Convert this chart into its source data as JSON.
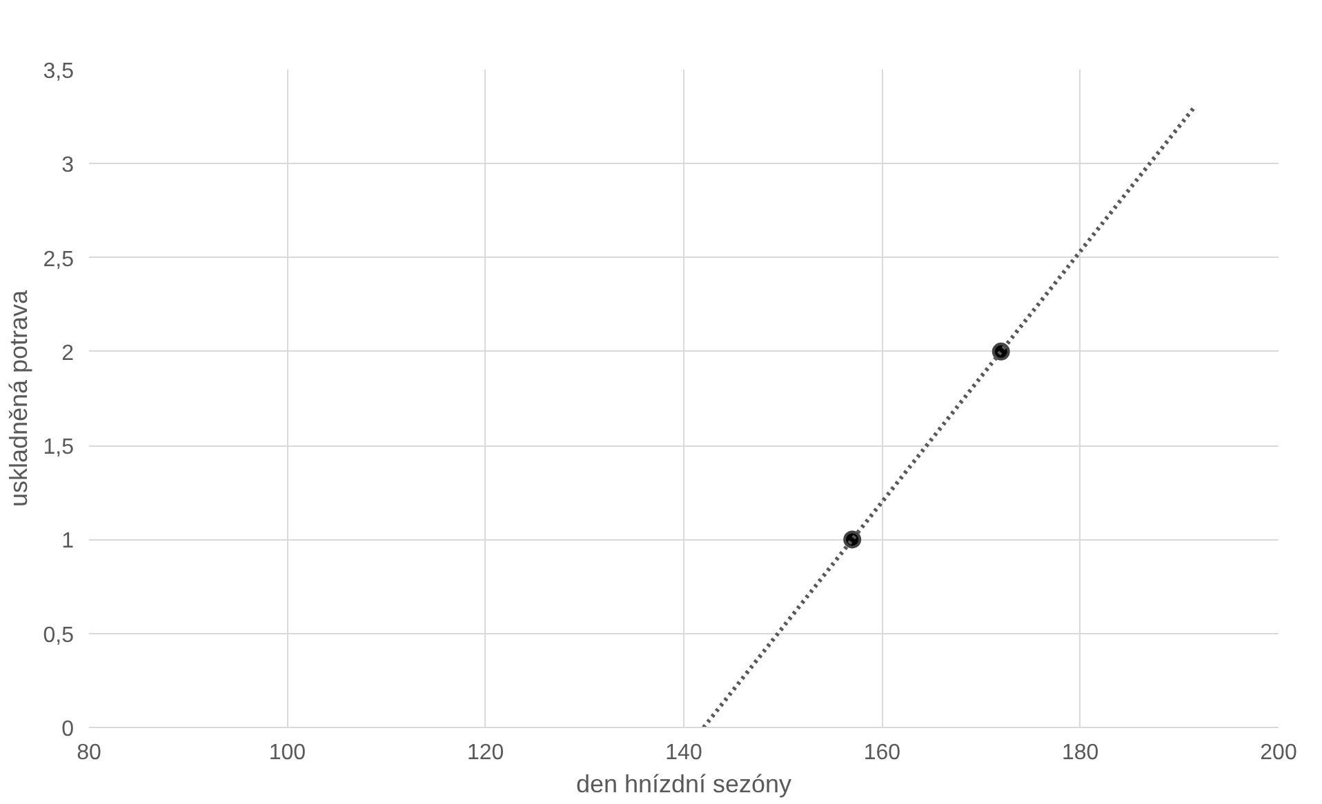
{
  "chart_data": {
    "type": "scatter",
    "xlabel": "den hnízdní sezóny",
    "ylabel": "uskladněná potrava",
    "xlim": [
      80,
      200
    ],
    "ylim": [
      0,
      3.5
    ],
    "xticks": [
      80,
      100,
      120,
      140,
      160,
      180,
      200
    ],
    "yticks": [
      0,
      {
        "value": 0.5,
        "label": "0,5"
      },
      1,
      {
        "value": 1.5,
        "label": "1,5"
      },
      2,
      {
        "value": 2.5,
        "label": "2,5"
      },
      3,
      {
        "value": 3.5,
        "label": "3,5"
      }
    ],
    "grid": true,
    "series": [
      {
        "color": "#000000",
        "marker": "circle",
        "x": [
          157,
          172
        ],
        "values": [
          1,
          2
        ]
      },
      {
        "type": "line",
        "color": "#595959",
        "line_style": "dotted",
        "marker": "none",
        "x": [
          142,
          191.5
        ],
        "values": [
          0,
          3.3
        ]
      }
    ]
  }
}
